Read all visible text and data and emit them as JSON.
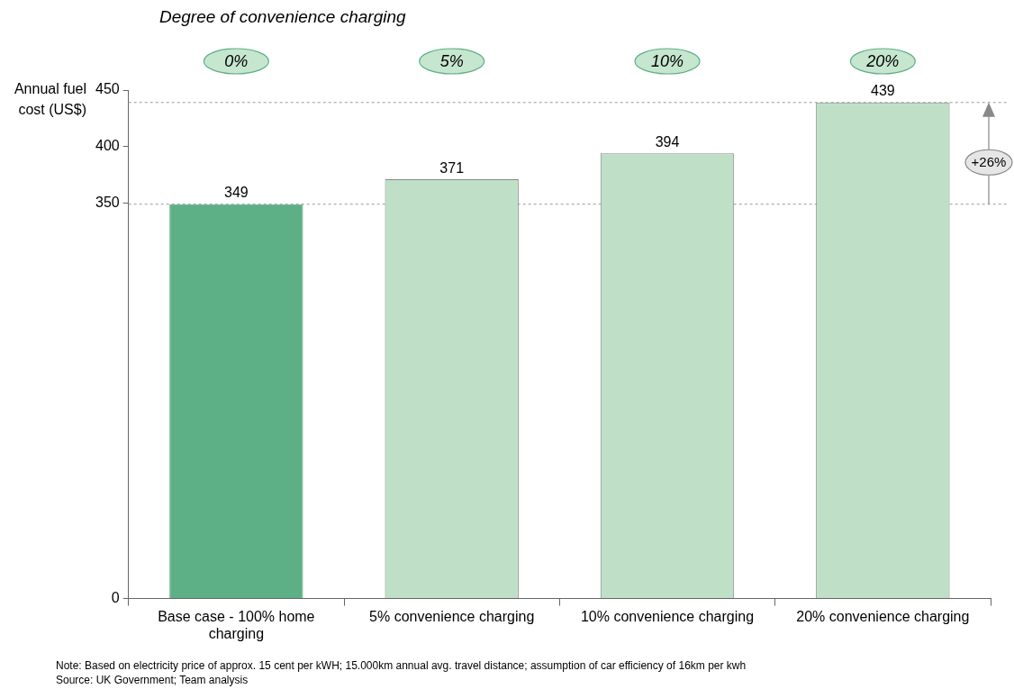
{
  "chart_data": {
    "type": "bar",
    "title": "Degree of convenience charging",
    "ylabel": "Annual fuel cost (US$)",
    "categories": [
      "Base case - 100% home charging",
      "5% convenience charging",
      "10% convenience charging",
      "20% convenience charging"
    ],
    "values": [
      349,
      371,
      394,
      439
    ],
    "colors": [
      "#5daf85",
      "#bfe0c6",
      "#bfe0c6",
      "#bfe0c6"
    ],
    "ylim": [
      0,
      450
    ],
    "yticks": [
      0,
      350,
      400,
      450
    ],
    "grid": false,
    "legend": false,
    "data_labels": true,
    "ref_lines": [
      {
        "axis": "y",
        "value": 349,
        "color": "#999999",
        "line_style": "dashed"
      },
      {
        "axis": "y",
        "value": 439,
        "color": "#999999",
        "line_style": "dashed"
      }
    ],
    "annotations": [
      "0%",
      "5%",
      "10%",
      "20%",
      "+26%",
      "Note: Based on electricity price of approx. 15 cent per kWH; 15.000km annual avg. travel distance; assumption of car efficiency of 16km per kwh",
      "Source: UK Government; Team analysis"
    ]
  }
}
